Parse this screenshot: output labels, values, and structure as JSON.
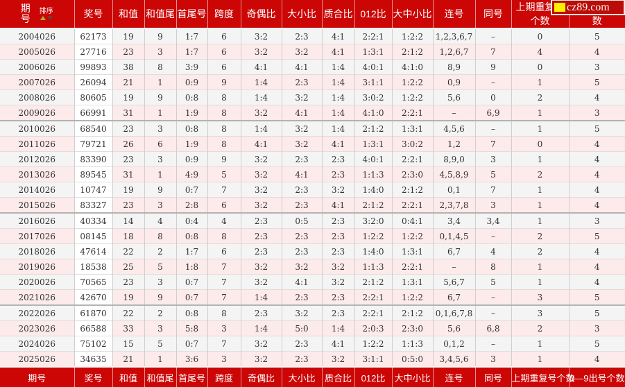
{
  "watermark": {
    "text": "cz89.com"
  },
  "colors": {
    "header_red": "#cc0505",
    "row_gray": "#f4f4f4",
    "row_pink": "#fdeaea",
    "award_col_bg": "#ffffff",
    "watermark_square": "#ffef00"
  },
  "table": {
    "period_label_line1": "期",
    "period_label_line2": "号",
    "sort_label": "排序",
    "columns": [
      "期号",
      "奖号",
      "和值",
      "和值尾",
      "首尾号",
      "跨度",
      "奇偶比",
      "大小比",
      "质合比",
      "012比",
      "大中小比",
      "连号",
      "同号",
      "上期重复号个数",
      "0—9出号个数"
    ],
    "rows": [
      [
        "2004026",
        "62173",
        "19",
        "9",
        "1:7",
        "6",
        "3:2",
        "2:3",
        "4:1",
        "2:2:1",
        "1:2:2",
        "1,2,3,6,7",
        "–",
        "0",
        "5"
      ],
      [
        "2005026",
        "27716",
        "23",
        "3",
        "1:7",
        "6",
        "3:2",
        "3:2",
        "4:1",
        "1:3:1",
        "2:1:2",
        "1,2,6,7",
        "7",
        "4",
        "4"
      ],
      [
        "2006026",
        "99893",
        "38",
        "8",
        "3:9",
        "6",
        "4:1",
        "4:1",
        "1:4",
        "4:0:1",
        "4:1:0",
        "8,9",
        "9",
        "0",
        "3"
      ],
      [
        "2007026",
        "26094",
        "21",
        "1",
        "0:9",
        "9",
        "1:4",
        "2:3",
        "1:4",
        "3:1:1",
        "1:2:2",
        "0,9",
        "–",
        "1",
        "5"
      ],
      [
        "2008026",
        "80605",
        "19",
        "9",
        "0:8",
        "8",
        "1:4",
        "3:2",
        "1:4",
        "3:0:2",
        "1:2:2",
        "5,6",
        "0",
        "2",
        "4"
      ],
      [
        "2009026",
        "66991",
        "31",
        "1",
        "1:9",
        "8",
        "3:2",
        "4:1",
        "1:4",
        "4:1:0",
        "2:2:1",
        "–",
        "6,9",
        "1",
        "3"
      ],
      [
        "2010026",
        "68540",
        "23",
        "3",
        "0:8",
        "8",
        "1:4",
        "3:2",
        "1:4",
        "2:1:2",
        "1:3:1",
        "4,5,6",
        "–",
        "1",
        "5"
      ],
      [
        "2011026",
        "79721",
        "26",
        "6",
        "1:9",
        "8",
        "4:1",
        "3:2",
        "4:1",
        "1:3:1",
        "3:0:2",
        "1,2",
        "7",
        "0",
        "4"
      ],
      [
        "2012026",
        "83390",
        "23",
        "3",
        "0:9",
        "9",
        "3:2",
        "2:3",
        "2:3",
        "4:0:1",
        "2:2:1",
        "8,9,0",
        "3",
        "1",
        "4"
      ],
      [
        "2013026",
        "89545",
        "31",
        "1",
        "4:9",
        "5",
        "3:2",
        "4:1",
        "2:3",
        "1:1:3",
        "2:3:0",
        "4,5,8,9",
        "5",
        "2",
        "4"
      ],
      [
        "2014026",
        "10747",
        "19",
        "9",
        "0:7",
        "7",
        "3:2",
        "2:3",
        "3:2",
        "1:4:0",
        "2:1:2",
        "0,1",
        "7",
        "1",
        "4"
      ],
      [
        "2015026",
        "83327",
        "23",
        "3",
        "2:8",
        "6",
        "3:2",
        "2:3",
        "4:1",
        "2:1:2",
        "2:2:1",
        "2,3,7,8",
        "3",
        "1",
        "4"
      ],
      [
        "2016026",
        "40334",
        "14",
        "4",
        "0:4",
        "4",
        "2:3",
        "0:5",
        "2:3",
        "3:2:0",
        "0:4:1",
        "3,4",
        "3,4",
        "1",
        "3"
      ],
      [
        "2017026",
        "08145",
        "18",
        "8",
        "0:8",
        "8",
        "2:3",
        "2:3",
        "2:3",
        "1:2:2",
        "1:2:2",
        "0,1,4,5",
        "–",
        "2",
        "5"
      ],
      [
        "2018026",
        "47614",
        "22",
        "2",
        "1:7",
        "6",
        "2:3",
        "2:3",
        "2:3",
        "1:4:0",
        "1:3:1",
        "6,7",
        "4",
        "2",
        "4"
      ],
      [
        "2019026",
        "18538",
        "25",
        "5",
        "1:8",
        "7",
        "3:2",
        "3:2",
        "3:2",
        "1:1:3",
        "2:2:1",
        "–",
        "8",
        "1",
        "4"
      ],
      [
        "2020026",
        "70565",
        "23",
        "3",
        "0:7",
        "7",
        "3:2",
        "4:1",
        "3:2",
        "2:1:2",
        "1:3:1",
        "5,6,7",
        "5",
        "1",
        "4"
      ],
      [
        "2021026",
        "42670",
        "19",
        "9",
        "0:7",
        "7",
        "1:4",
        "2:3",
        "2:3",
        "2:2:1",
        "1:2:2",
        "6,7",
        "–",
        "3",
        "5"
      ],
      [
        "2022026",
        "61870",
        "22",
        "2",
        "0:8",
        "8",
        "2:3",
        "3:2",
        "2:3",
        "2:2:1",
        "2:1:2",
        "0,1,6,7,8",
        "–",
        "3",
        "5"
      ],
      [
        "2023026",
        "66588",
        "33",
        "3",
        "5:8",
        "3",
        "1:4",
        "5:0",
        "1:4",
        "2:0:3",
        "2:3:0",
        "5,6",
        "6,8",
        "2",
        "3"
      ],
      [
        "2024026",
        "75102",
        "15",
        "5",
        "0:7",
        "7",
        "3:2",
        "2:3",
        "4:1",
        "1:2:2",
        "1:1:3",
        "0,1,2",
        "–",
        "1",
        "5"
      ],
      [
        "2025026",
        "34635",
        "21",
        "1",
        "3:6",
        "3",
        "3:2",
        "2:3",
        "3:2",
        "3:1:1",
        "0:5:0",
        "3,4,5,6",
        "3",
        "1",
        "4"
      ]
    ]
  }
}
